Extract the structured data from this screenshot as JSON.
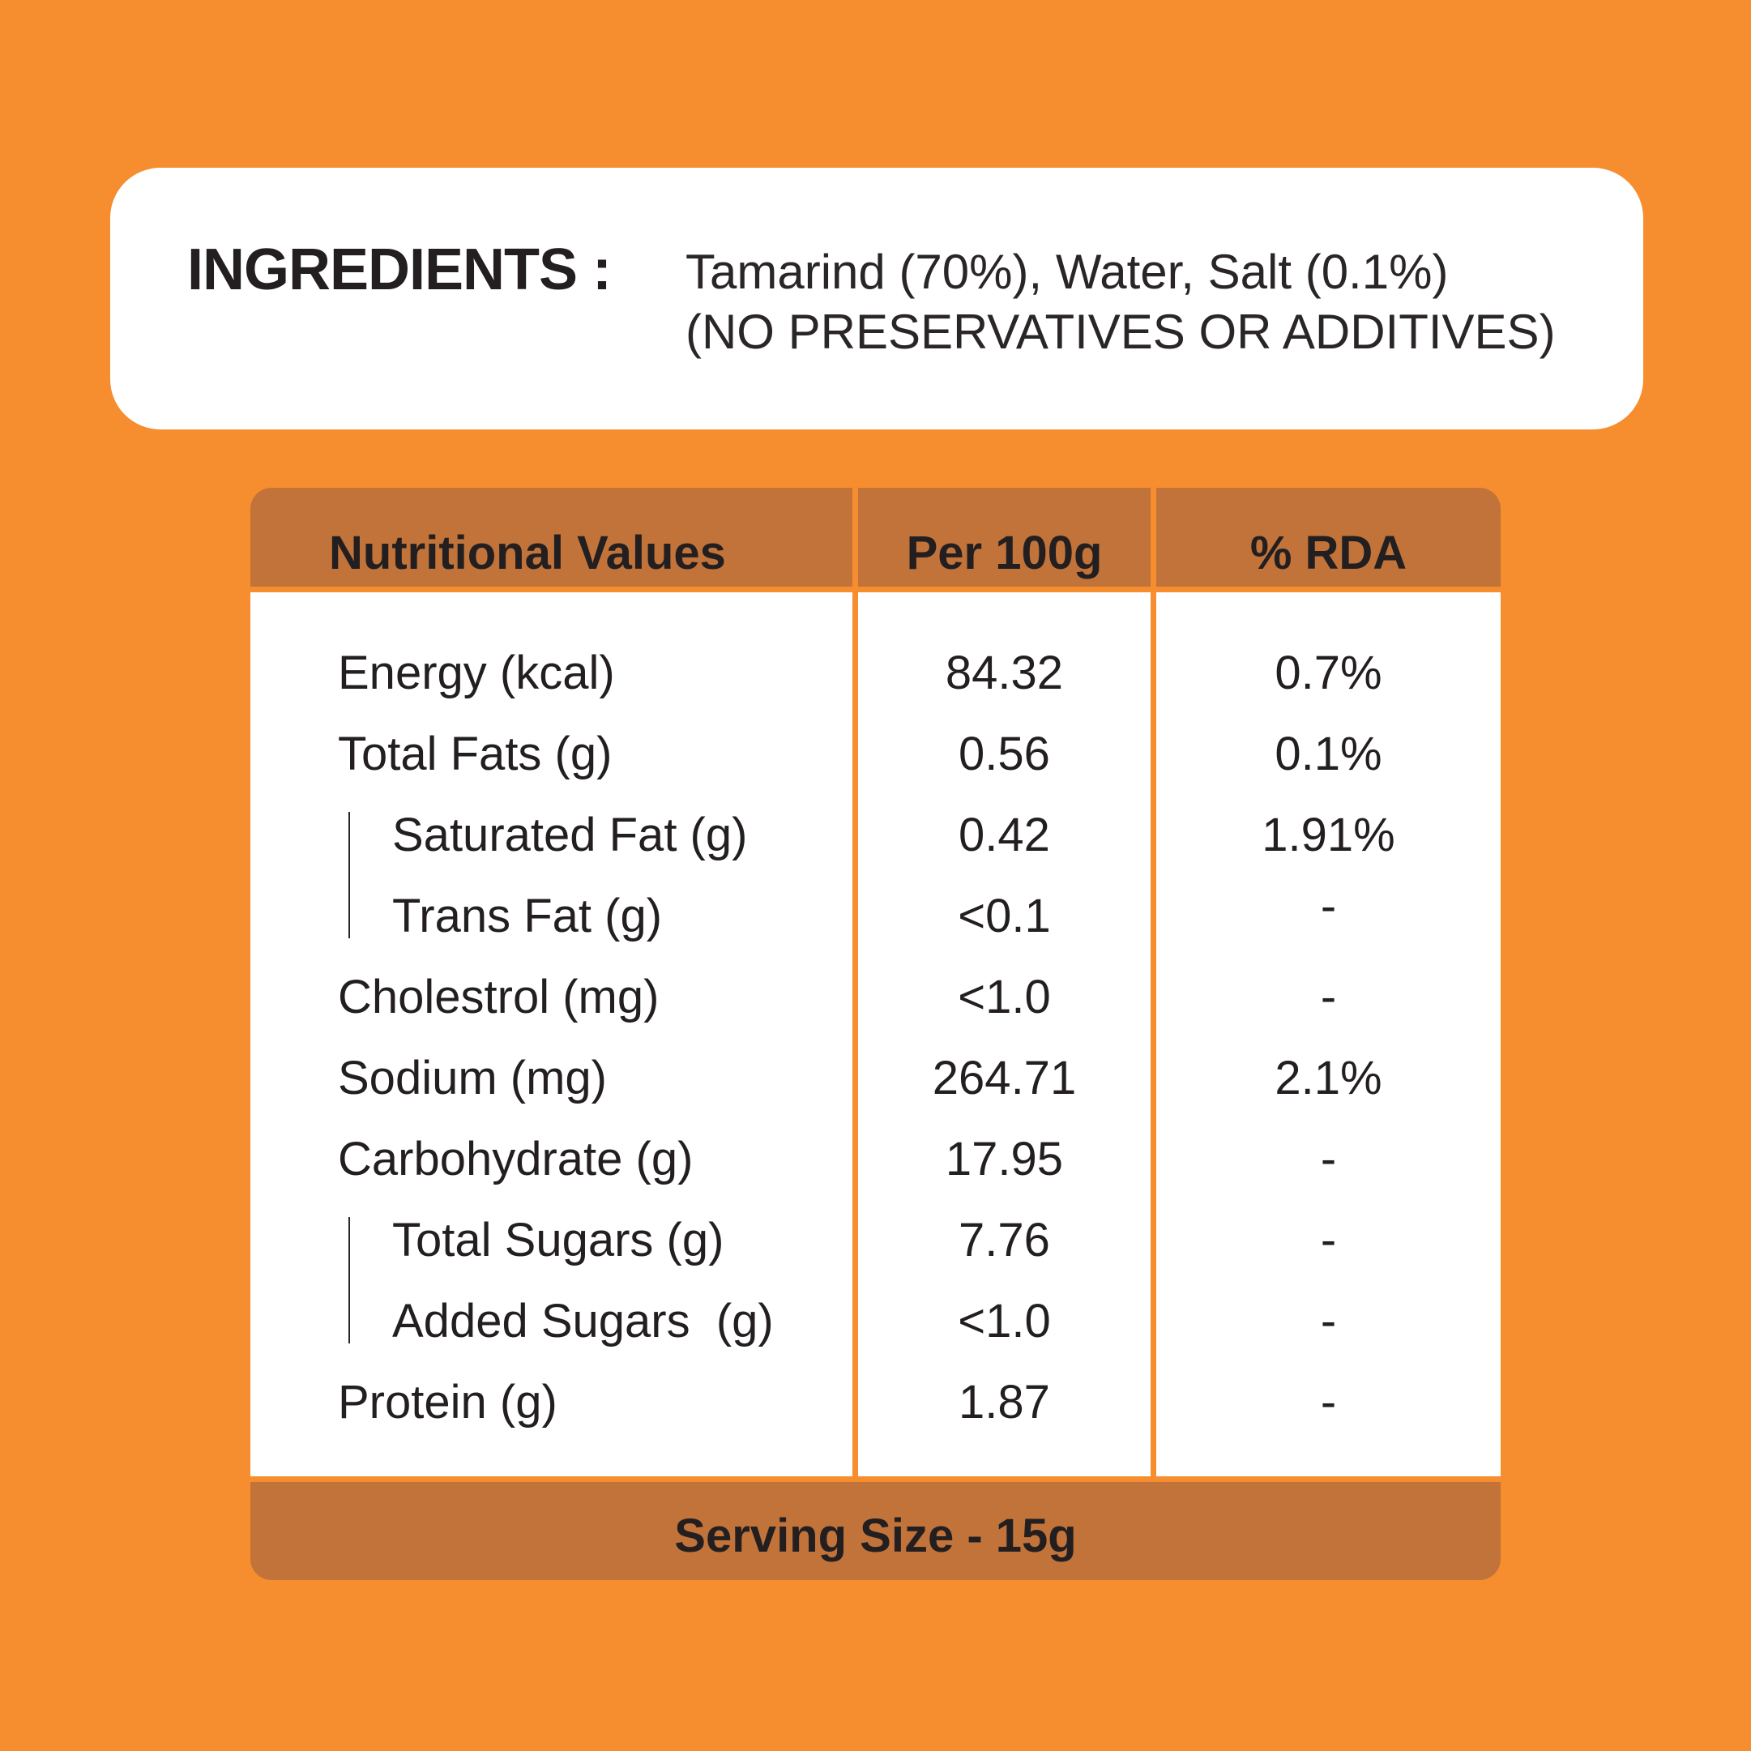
{
  "ingredients": {
    "heading": "INGREDIENTS :",
    "line1": "Tamarind (70%), Water, Salt (0.1%)",
    "line2": "(NO PRESERVATIVES OR ADDITIVES)"
  },
  "table": {
    "headers": {
      "name": "Nutritional Values",
      "per100g": "Per 100g",
      "rda": "% RDA"
    },
    "rows": [
      {
        "name": "Energy (kcal)",
        "per100g": "84.32",
        "rda": "0.7%"
      },
      {
        "name": "Total Fats (g)",
        "per100g": "0.56",
        "rda": "0.1%"
      },
      {
        "name": "Saturated Fat (g)",
        "per100g": "0.42",
        "rda": "1.91%"
      },
      {
        "name": "Trans Fat (g)",
        "per100g": "<0.1",
        "rda": "-"
      },
      {
        "name": "Cholestrol (mg)",
        "per100g": "<1.0",
        "rda": "-"
      },
      {
        "name": "Sodium (mg)",
        "per100g": "264.71",
        "rda": "2.1%"
      },
      {
        "name": "Carbohydrate (g)",
        "per100g": "17.95",
        "rda": "-"
      },
      {
        "name": "Total Sugars (g)",
        "per100g": "7.76",
        "rda": "-"
      },
      {
        "name": "Added Sugars  (g)",
        "per100g": "<1.0",
        "rda": "-"
      },
      {
        "name": "Protein (g)",
        "per100g": "1.87",
        "rda": "-"
      }
    ],
    "footer": "Serving Size - 15g"
  },
  "colors": {
    "background": "#F68D2E",
    "header_band": "#C1733A",
    "card": "#FFFFFF",
    "text": "#231F20"
  }
}
